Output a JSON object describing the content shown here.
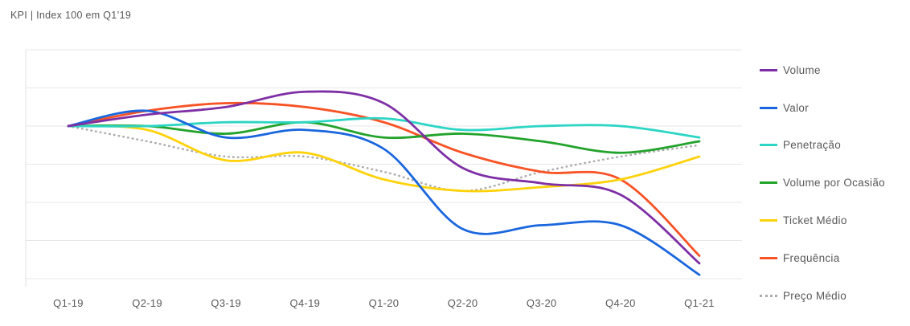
{
  "title": "KPI | Index 100 em Q1’19",
  "chart_data": {
    "type": "line",
    "title": "KPI | Index 100 em Q1’19",
    "xlabel": "",
    "ylabel": "",
    "categories": [
      "Q1-19",
      "Q2-19",
      "Q3-19",
      "Q4-19",
      "Q1-20",
      "Q2-20",
      "Q3-20",
      "Q4-20",
      "Q1-21"
    ],
    "series": [
      {
        "name": "Volume",
        "color": "#7E2FA5",
        "dashed": false,
        "values": [
          100,
          103,
          105,
          109,
          106,
          89,
          85,
          82,
          64
        ]
      },
      {
        "name": "Valor",
        "color": "#1A66DE",
        "dashed": false,
        "values": [
          100,
          104,
          97,
          99,
          94,
          73,
          74,
          74,
          61
        ]
      },
      {
        "name": "Penetração",
        "color": "#2CD5C4",
        "dashed": false,
        "values": [
          100,
          100,
          101,
          101,
          102,
          99,
          100,
          100,
          97
        ]
      },
      {
        "name": "Volume por Ocasião",
        "color": "#22A32B",
        "dashed": false,
        "values": [
          100,
          100,
          98,
          101,
          97,
          98,
          96,
          93,
          96
        ]
      },
      {
        "name": "Ticket Médio",
        "color": "#FFD20A",
        "dashed": false,
        "values": [
          100,
          99,
          91,
          93,
          86,
          83,
          84,
          86,
          92
        ]
      },
      {
        "name": "Frequência",
        "color": "#F85325",
        "dashed": false,
        "values": [
          100,
          104,
          106,
          105,
          101,
          93,
          88,
          86,
          66
        ]
      },
      {
        "name": "Preço Médio",
        "color": "#ACACAC",
        "dashed": true,
        "values": [
          100,
          96,
          92,
          92,
          88,
          83,
          88,
          92,
          95
        ]
      }
    ],
    "ylim": [
      60,
      120
    ],
    "grid_step": 10,
    "grid": "horizontal-only",
    "gridline_color": "#e7e7e7",
    "axis_line_color": "#e0e0e0",
    "text_color": "#595959",
    "legend_position": "right",
    "y_tick_labels_visible": false
  }
}
